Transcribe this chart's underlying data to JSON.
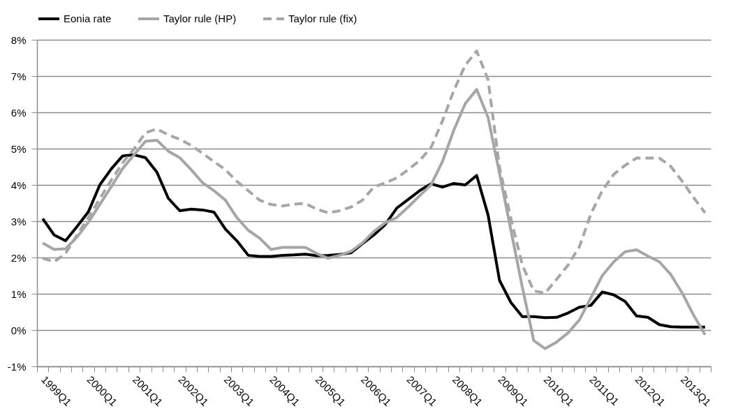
{
  "chart_data": {
    "type": "line",
    "categories": [
      "1999Q1",
      null,
      null,
      null,
      "2000Q1",
      null,
      null,
      null,
      "2001Q1",
      null,
      null,
      null,
      "2002Q1",
      null,
      null,
      null,
      "2003Q1",
      null,
      null,
      null,
      "2004Q1",
      null,
      null,
      null,
      "2005Q1",
      null,
      null,
      null,
      "2006Q1",
      null,
      null,
      null,
      "2007Q1",
      null,
      null,
      null,
      "2008Q1",
      null,
      null,
      null,
      "2009Q1",
      null,
      null,
      null,
      "2010Q1",
      null,
      null,
      null,
      "2011Q1",
      null,
      null,
      null,
      "2012Q1",
      null,
      null,
      null,
      "2013Q1",
      null,
      null
    ],
    "series": [
      {
        "name": "Eonia rate",
        "color": "#000000",
        "line_style": "solid",
        "values": [
          3.07,
          2.62,
          2.46,
          2.85,
          3.26,
          4.0,
          4.44,
          4.8,
          4.83,
          4.75,
          4.35,
          3.63,
          3.29,
          3.33,
          3.31,
          3.25,
          2.78,
          2.46,
          2.06,
          2.03,
          2.03,
          2.06,
          2.07,
          2.09,
          2.05,
          2.06,
          2.08,
          2.13,
          2.38,
          2.62,
          2.91,
          3.36,
          3.6,
          3.84,
          4.03,
          3.94,
          4.04,
          4.0,
          4.26,
          3.17,
          1.37,
          0.76,
          0.37,
          0.37,
          0.34,
          0.35,
          0.47,
          0.63,
          0.68,
          1.05,
          0.97,
          0.79,
          0.39,
          0.35,
          0.15,
          0.09,
          0.08,
          0.08,
          0.08
        ]
      },
      {
        "name": "Taylor rule (HP)",
        "color": "#a6a6a6",
        "line_style": "solid",
        "values": [
          2.4,
          2.22,
          2.24,
          2.56,
          2.97,
          3.46,
          3.95,
          4.45,
          4.83,
          5.2,
          5.23,
          4.93,
          4.75,
          4.42,
          4.06,
          3.84,
          3.58,
          3.1,
          2.75,
          2.53,
          2.22,
          2.28,
          2.28,
          2.28,
          2.11,
          1.98,
          2.06,
          2.17,
          2.4,
          2.72,
          2.96,
          3.1,
          3.39,
          3.7,
          4.0,
          4.64,
          5.51,
          6.24,
          6.63,
          5.86,
          4.32,
          2.75,
          1.18,
          -0.29,
          -0.51,
          -0.33,
          -0.08,
          0.28,
          0.89,
          1.5,
          1.88,
          2.16,
          2.21,
          2.04,
          1.88,
          1.53,
          1.02,
          0.41,
          -0.13
        ]
      },
      {
        "name": "Taylor rule (fix)",
        "color": "#a6a6a6",
        "line_style": "dashed",
        "values": [
          1.98,
          1.88,
          2.11,
          2.62,
          3.1,
          3.62,
          4.13,
          4.61,
          4.99,
          5.44,
          5.54,
          5.38,
          5.26,
          5.09,
          4.87,
          4.64,
          4.42,
          4.1,
          3.84,
          3.58,
          3.46,
          3.42,
          3.47,
          3.49,
          3.33,
          3.23,
          3.29,
          3.39,
          3.58,
          3.94,
          4.06,
          4.19,
          4.42,
          4.67,
          5.03,
          5.76,
          6.6,
          7.3,
          7.69,
          6.9,
          4.48,
          3.07,
          1.79,
          1.08,
          1.02,
          1.4,
          1.79,
          2.3,
          3.2,
          3.84,
          4.29,
          4.54,
          4.74,
          4.74,
          4.74,
          4.51,
          4.1,
          3.65,
          3.23
        ]
      }
    ],
    "ylim": [
      -1,
      8
    ],
    "yticks": [
      {
        "value": -1,
        "label": "-1%"
      },
      {
        "value": 0,
        "label": "0%"
      },
      {
        "value": 1,
        "label": "1%"
      },
      {
        "value": 2,
        "label": "2%"
      },
      {
        "value": 3,
        "label": "3%"
      },
      {
        "value": 4,
        "label": "4%"
      },
      {
        "value": 5,
        "label": "5%"
      },
      {
        "value": 6,
        "label": "6%"
      },
      {
        "value": 7,
        "label": "7%"
      },
      {
        "value": 8,
        "label": "8%"
      }
    ],
    "grid": "y",
    "legend": "top"
  }
}
